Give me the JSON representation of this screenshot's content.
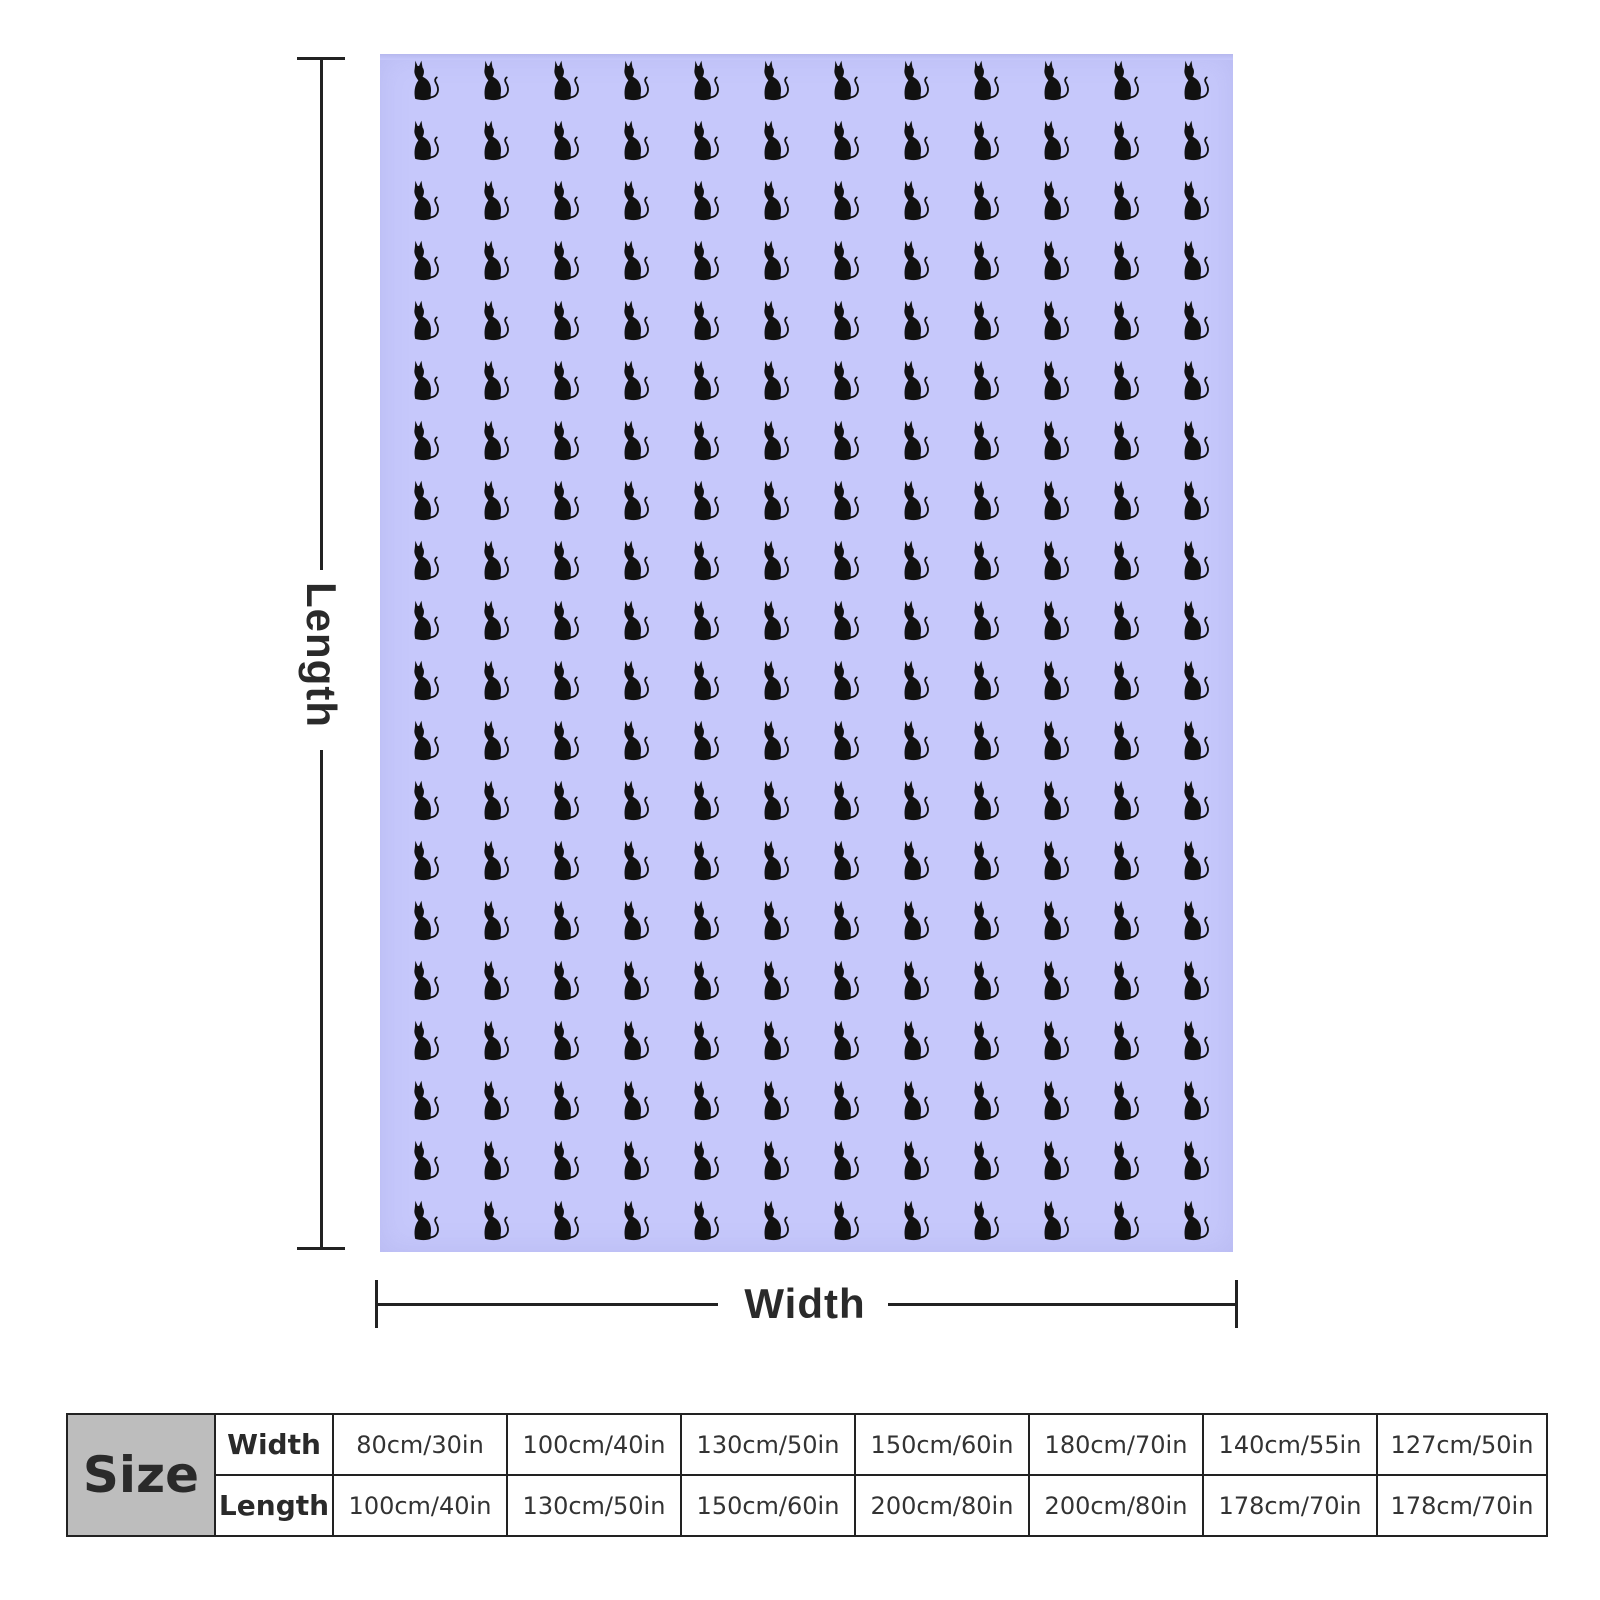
{
  "product_image": {
    "pattern_icon": "cat-silhouette-icon",
    "background_color": "#c6c8fb",
    "pattern_color": "#111111"
  },
  "dimensions": {
    "length_label": "Length",
    "width_label": "Width"
  },
  "size_table": {
    "header": "Size",
    "row_labels": [
      "Width",
      "Length"
    ],
    "widths": [
      "80cm/30in",
      "100cm/40in",
      "130cm/50in",
      "150cm/60in",
      "180cm/70in",
      "140cm/55in",
      "127cm/50in"
    ],
    "lengths": [
      "100cm/40in",
      "130cm/50in",
      "150cm/60in",
      "200cm/80in",
      "200cm/80in",
      "178cm/70in",
      "178cm/70in"
    ]
  }
}
